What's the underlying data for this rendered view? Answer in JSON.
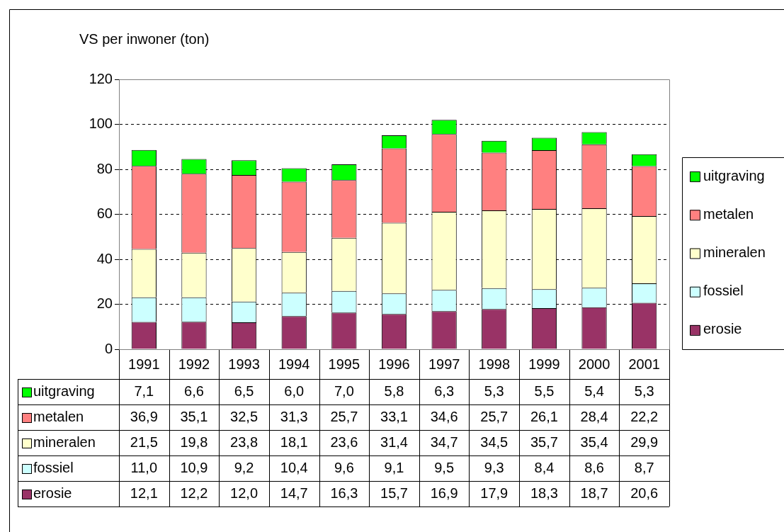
{
  "chart_data": {
    "type": "bar",
    "stacked": true,
    "ylabel": "VS per inwoner (ton)",
    "categories": [
      "1991",
      "1992",
      "1993",
      "1994",
      "1995",
      "1996",
      "1997",
      "1998",
      "1999",
      "2000",
      "2001"
    ],
    "series": [
      {
        "name": "erosie",
        "color": "#993366",
        "values": [
          12.1,
          12.2,
          12.0,
          14.7,
          16.3,
          15.7,
          16.9,
          17.9,
          18.3,
          18.7,
          20.6
        ],
        "value_labels": [
          "12,1",
          "12,2",
          "12,0",
          "14,7",
          "16,3",
          "15,7",
          "16,9",
          "17,9",
          "18,3",
          "18,7",
          "20,6"
        ]
      },
      {
        "name": "fossiel",
        "color": "#ccffff",
        "values": [
          11.0,
          10.9,
          9.2,
          10.4,
          9.6,
          9.1,
          9.5,
          9.3,
          8.4,
          8.6,
          8.7
        ],
        "value_labels": [
          "11,0",
          "10,9",
          "9,2",
          "10,4",
          "9,6",
          "9,1",
          "9,5",
          "9,3",
          "8,4",
          "8,6",
          "8,7"
        ]
      },
      {
        "name": "mineralen",
        "color": "#ffffcc",
        "values": [
          21.5,
          19.8,
          23.8,
          18.1,
          23.6,
          31.4,
          34.7,
          34.5,
          35.7,
          35.4,
          29.9
        ],
        "value_labels": [
          "21,5",
          "19,8",
          "23,8",
          "18,1",
          "23,6",
          "31,4",
          "34,7",
          "34,5",
          "35,7",
          "35,4",
          "29,9"
        ]
      },
      {
        "name": "metalen",
        "color": "#ff8080",
        "values": [
          36.9,
          35.1,
          32.5,
          31.3,
          25.7,
          33.1,
          34.6,
          25.7,
          26.1,
          28.4,
          22.2
        ],
        "value_labels": [
          "36,9",
          "35,1",
          "32,5",
          "31,3",
          "25,7",
          "33,1",
          "34,6",
          "25,7",
          "26,1",
          "28,4",
          "22,2"
        ]
      },
      {
        "name": "uitgraving",
        "color": "#00ff00",
        "values": [
          7.1,
          6.6,
          6.5,
          6.0,
          7.0,
          5.8,
          6.3,
          5.3,
          5.5,
          5.4,
          5.3
        ],
        "value_labels": [
          "7,1",
          "6,6",
          "6,5",
          "6,0",
          "7,0",
          "5,8",
          "6,3",
          "5,3",
          "5,5",
          "5,4",
          "5,3"
        ]
      }
    ],
    "ylim": [
      0,
      120
    ],
    "yticks": [
      0,
      20,
      40,
      60,
      80,
      100,
      120
    ],
    "grid": "y",
    "legend": "right"
  }
}
